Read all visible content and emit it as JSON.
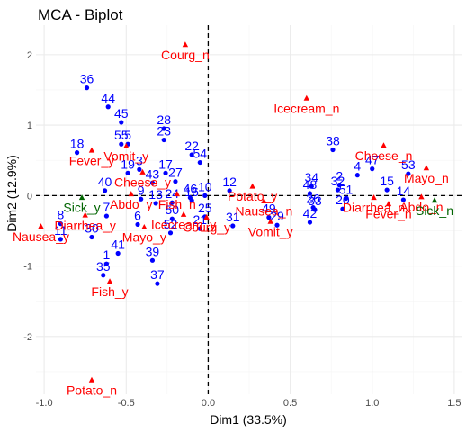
{
  "chart_data": {
    "type": "scatter",
    "title": "MCA - Biplot",
    "xlabel": "Dim1 (33.5%)",
    "ylabel": "Dim2 (12.9%)",
    "xlim": [
      -1.05,
      1.55
    ],
    "ylim": [
      -2.82,
      2.42
    ],
    "x_ticks": [
      -1.0,
      -0.5,
      0.0,
      0.5,
      1.0,
      1.5
    ],
    "x_tick_labels": [
      "-1.0",
      "-0.5",
      "0.0",
      "0.5",
      "1.0",
      "1.5"
    ],
    "y_ticks": [
      -2,
      -1,
      0,
      1,
      2
    ],
    "y_tick_labels": [
      "-2",
      "-1",
      "0",
      "1",
      "2"
    ],
    "grid": true,
    "zero_lines": true,
    "colors": {
      "individuals": "#0000ff",
      "variables": "#ff0000",
      "supplementary": "#006400",
      "grid_major": "#ebebeb",
      "grid_minor": "#f5f5f5"
    },
    "individuals": [
      {
        "label": "1",
        "x": -0.62,
        "y": -0.97
      },
      {
        "label": "2",
        "x": 0.8,
        "y": 0.15
      },
      {
        "label": "3",
        "x": -0.42,
        "y": 0.37
      },
      {
        "label": "4",
        "x": 0.91,
        "y": 0.29
      },
      {
        "label": "5",
        "x": -0.49,
        "y": 0.73
      },
      {
        "label": "6",
        "x": -0.43,
        "y": -0.41
      },
      {
        "label": "7",
        "x": -0.62,
        "y": -0.29
      },
      {
        "label": "8",
        "x": -0.9,
        "y": -0.4
      },
      {
        "label": "9",
        "x": -0.41,
        "y": -0.05
      },
      {
        "label": "10",
        "x": -0.02,
        "y": 0.0
      },
      {
        "label": "11",
        "x": -0.9,
        "y": -0.62
      },
      {
        "label": "12",
        "x": 0.13,
        "y": 0.07
      },
      {
        "label": "13",
        "x": -0.32,
        "y": -0.11
      },
      {
        "label": "14",
        "x": 1.19,
        "y": -0.06
      },
      {
        "label": "15",
        "x": 1.09,
        "y": 0.08
      },
      {
        "label": "16",
        "x": -0.1,
        "y": -0.07
      },
      {
        "label": "17",
        "x": -0.26,
        "y": 0.32
      },
      {
        "label": "18",
        "x": -0.8,
        "y": 0.61
      },
      {
        "label": "19",
        "x": -0.49,
        "y": 0.32
      },
      {
        "label": "20",
        "x": 0.82,
        "y": -0.19
      },
      {
        "label": "21",
        "x": -0.05,
        "y": -0.47
      },
      {
        "label": "22",
        "x": -0.1,
        "y": 0.58
      },
      {
        "label": "23",
        "x": -0.27,
        "y": 0.79
      },
      {
        "label": "24",
        "x": -0.22,
        "y": -0.1
      },
      {
        "label": "25",
        "x": -0.02,
        "y": -0.3
      },
      {
        "label": "26",
        "x": 0.64,
        "y": -0.17
      },
      {
        "label": "27",
        "x": -0.2,
        "y": 0.2
      },
      {
        "label": "28",
        "x": -0.27,
        "y": 0.95
      },
      {
        "label": "29",
        "x": 0.42,
        "y": -0.42
      },
      {
        "label": "30",
        "x": -0.71,
        "y": -0.59
      },
      {
        "label": "31",
        "x": 0.15,
        "y": -0.43
      },
      {
        "label": "32",
        "x": 0.79,
        "y": 0.08
      },
      {
        "label": "33",
        "x": 0.65,
        "y": -0.2
      },
      {
        "label": "34",
        "x": 0.63,
        "y": 0.13
      },
      {
        "label": "35",
        "x": -0.64,
        "y": -1.13
      },
      {
        "label": "36",
        "x": -0.74,
        "y": 1.53
      },
      {
        "label": "37",
        "x": -0.31,
        "y": -1.25
      },
      {
        "label": "38",
        "x": 0.76,
        "y": 0.65
      },
      {
        "label": "39",
        "x": -0.34,
        "y": -0.92
      },
      {
        "label": "40",
        "x": -0.63,
        "y": 0.07
      },
      {
        "label": "41",
        "x": -0.55,
        "y": -0.82
      },
      {
        "label": "42",
        "x": 0.62,
        "y": -0.38
      },
      {
        "label": "43",
        "x": -0.34,
        "y": 0.18
      },
      {
        "label": "44",
        "x": -0.61,
        "y": 1.26
      },
      {
        "label": "45",
        "x": -0.53,
        "y": 1.04
      },
      {
        "label": "46",
        "x": -0.11,
        "y": -0.03
      },
      {
        "label": "47",
        "x": 1.0,
        "y": 0.38
      },
      {
        "label": "48",
        "x": 0.62,
        "y": 0.03
      },
      {
        "label": "49",
        "x": 0.37,
        "y": -0.31
      },
      {
        "label": "50",
        "x": -0.22,
        "y": -0.33
      },
      {
        "label": "51",
        "x": 0.84,
        "y": -0.04
      },
      {
        "label": "52",
        "x": -0.23,
        "y": -0.53
      },
      {
        "label": "53",
        "x": 1.22,
        "y": 0.31
      },
      {
        "label": "54",
        "x": -0.05,
        "y": 0.47
      },
      {
        "label": "55",
        "x": -0.53,
        "y": 0.73
      }
    ],
    "variables": [
      {
        "label": "Courg_n",
        "x": -0.14,
        "y": 2.14,
        "color": "#ff0000"
      },
      {
        "label": "Icecream_n",
        "x": 0.6,
        "y": 1.38,
        "color": "#ff0000"
      },
      {
        "label": "Cheese_n",
        "x": 1.07,
        "y": 0.71,
        "color": "#ff0000"
      },
      {
        "label": "Mayo_n",
        "x": 1.33,
        "y": 0.39,
        "color": "#ff0000"
      },
      {
        "label": "Vomit_y",
        "x": -0.5,
        "y": 0.7,
        "color": "#ff0000"
      },
      {
        "label": "Fever_y",
        "x": -0.71,
        "y": 0.64,
        "color": "#ff0000"
      },
      {
        "label": "Cheese_y",
        "x": -0.4,
        "y": 0.33,
        "color": "#ff0000"
      },
      {
        "label": "Potato_y",
        "x": 0.27,
        "y": 0.13,
        "color": "#ff0000"
      },
      {
        "label": "Abdo_y",
        "x": -0.47,
        "y": 0.02,
        "color": "#ff0000"
      },
      {
        "label": "Fish_n",
        "x": -0.19,
        "y": 0.02,
        "color": "#ff0000"
      },
      {
        "label": "Nausea_n",
        "x": 0.34,
        "y": -0.08,
        "color": "#ff0000"
      },
      {
        "label": "Diarrhea_n",
        "x": 1.01,
        "y": -0.03,
        "color": "#ff0000"
      },
      {
        "label": "Abdo_n",
        "x": 1.3,
        "y": -0.02,
        "color": "#ff0000"
      },
      {
        "label": "Sick_n",
        "x": 1.38,
        "y": -0.07,
        "color": "#006400"
      },
      {
        "label": "Fever_n",
        "x": 1.1,
        "y": -0.12,
        "color": "#ff0000"
      },
      {
        "label": "Sick_y",
        "x": -0.77,
        "y": -0.03,
        "color": "#006400"
      },
      {
        "label": "Diarrhea_y",
        "x": -0.75,
        "y": -0.28,
        "color": "#ff0000"
      },
      {
        "label": "Icecream_y",
        "x": -0.15,
        "y": -0.27,
        "color": "#ff0000"
      },
      {
        "label": "Courg_y",
        "x": -0.01,
        "y": -0.31,
        "color": "#ff0000"
      },
      {
        "label": "Nausea_y",
        "x": -1.02,
        "y": -0.44,
        "color": "#ff0000"
      },
      {
        "label": "Mayo_y",
        "x": -0.39,
        "y": -0.45,
        "color": "#ff0000"
      },
      {
        "label": "Vomit_y",
        "x": 0.38,
        "y": -0.37,
        "color": "#ff0000"
      },
      {
        "label": "Fish_y",
        "x": -0.6,
        "y": -1.22,
        "color": "#ff0000"
      },
      {
        "label": "Potato_n",
        "x": -0.71,
        "y": -2.62,
        "color": "#ff0000"
      }
    ]
  }
}
